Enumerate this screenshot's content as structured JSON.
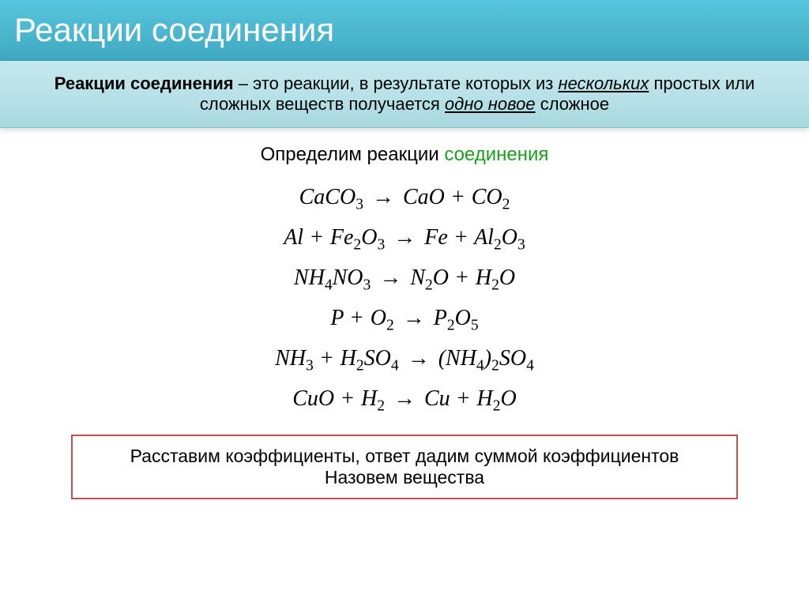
{
  "title": "Реакции соединения",
  "definition": {
    "bold": "Реакции соединения",
    "text1": " – это реакции, в результате которых из ",
    "underline1": "нескольких",
    "text2": " простых или сложных веществ получается ",
    "underline2": "одно новое",
    "text3": " сложное"
  },
  "subtitle": {
    "text1": "Определим реакции ",
    "green": "соединения"
  },
  "equations": {
    "eq1": {
      "lhs": "CaCO",
      "lhs_sub": "3",
      "rhs1": "CaO",
      "rhs2": "CO",
      "rhs2_sub": "2"
    },
    "eq2": {
      "l1": "Al",
      "l2": "Fe",
      "l2_sub": "2",
      "l3": "O",
      "l3_sub": "3",
      "r1": "Fe",
      "r2": "Al",
      "r2_sub": "2",
      "r3": "O",
      "r3_sub": "3"
    },
    "eq3": {
      "l1": "NH",
      "l1_sub": "4",
      "l2": "NO",
      "l2_sub": "3",
      "r1": "N",
      "r1_sub": "2",
      "r2": "O",
      "r3": "H",
      "r3_sub": "2",
      "r4": "O"
    },
    "eq4": {
      "l1": "P",
      "l2": "O",
      "l2_sub": "2",
      "r1": "P",
      "r1_sub": "2",
      "r2": "O",
      "r2_sub": "5"
    },
    "eq5": {
      "l1": "NH",
      "l1_sub": "3",
      "l2": "H",
      "l2_sub": "2",
      "l3": "SO",
      "l3_sub": "4",
      "r1": "(NH",
      "r1_sub": "4",
      "r2": ")",
      "r2_sub": "2",
      "r3": "SO",
      "r3_sub": "4"
    },
    "eq6": {
      "l1": "CuO",
      "l2": "H",
      "l2_sub": "2",
      "r1": "Cu",
      "r2": "H",
      "r2_sub": "2",
      "r3": "O"
    }
  },
  "task": {
    "line1": "Расставим коэффициенты, ответ дадим суммой коэффициентов",
    "line2": "Назовем вещества"
  },
  "colors": {
    "title_bg_top": "#56c4dd",
    "title_bg_bottom": "#3da8c0",
    "title_text": "#ffffff",
    "def_bg_top": "#c4e8ed",
    "def_bg_bottom": "#a8d8de",
    "green": "#1aa01a",
    "box_border": "#c05050",
    "text": "#000000"
  }
}
